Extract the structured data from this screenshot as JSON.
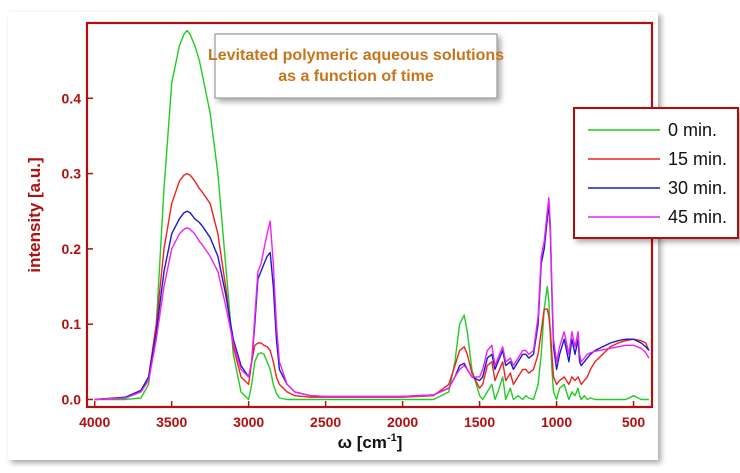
{
  "chart_data": {
    "type": "line",
    "title_lines": [
      "Levitated polymeric aqueous solutions",
      "as a function of time"
    ],
    "xlabel": "ω [cm",
    "xlabel_sup": "-1",
    "xlabel_end": "]",
    "ylabel": "intensity [a.u.]",
    "xlim": [
      4050,
      380
    ],
    "ylim": [
      -0.01,
      0.5
    ],
    "xticks": [
      4000,
      3500,
      3000,
      2500,
      2000,
      1500,
      1000,
      500
    ],
    "xtick_labels": [
      "4000",
      "3500",
      "3000",
      "2500",
      "2000",
      "1500",
      "1000",
      "500"
    ],
    "yticks": [
      0.0,
      0.1,
      0.2,
      0.3,
      0.4
    ],
    "ytick_labels": [
      "0.0",
      "0.1",
      "0.2",
      "0.3",
      "0.4"
    ],
    "legend_position": "top-right",
    "grid": false,
    "axis_color": "#b01010",
    "series": [
      {
        "name": "0 min.",
        "color": "#22cc22",
        "x": [
          4000,
          3800,
          3700,
          3650,
          3600,
          3550,
          3500,
          3450,
          3420,
          3400,
          3380,
          3350,
          3320,
          3300,
          3250,
          3200,
          3150,
          3100,
          3050,
          3000,
          2980,
          2960,
          2940,
          2920,
          2900,
          2880,
          2860,
          2840,
          2820,
          2800,
          2750,
          2700,
          2600,
          2500,
          2400,
          2200,
          2000,
          1800,
          1700,
          1660,
          1630,
          1600,
          1580,
          1550,
          1500,
          1480,
          1450,
          1420,
          1400,
          1380,
          1350,
          1330,
          1300,
          1280,
          1250,
          1220,
          1200,
          1180,
          1150,
          1120,
          1100,
          1080,
          1060,
          1050,
          1040,
          1030,
          1020,
          1000,
          980,
          950,
          920,
          900,
          880,
          860,
          850,
          840,
          820,
          800,
          780,
          750,
          700,
          650,
          600,
          550,
          500,
          450,
          420,
          400
        ],
        "y": [
          0.0,
          0.0,
          0.002,
          0.02,
          0.1,
          0.28,
          0.42,
          0.47,
          0.485,
          0.49,
          0.485,
          0.47,
          0.45,
          0.43,
          0.38,
          0.3,
          0.18,
          0.06,
          0.01,
          0.0,
          0.02,
          0.05,
          0.06,
          0.062,
          0.06,
          0.05,
          0.04,
          0.02,
          0.008,
          0.002,
          0.0,
          0.0,
          0.0,
          0.0,
          0.0,
          0.0,
          0.0,
          0.0,
          0.01,
          0.05,
          0.1,
          0.112,
          0.09,
          0.04,
          0.005,
          0.0,
          0.01,
          0.02,
          0.0,
          0.01,
          0.03,
          0.0,
          0.015,
          0.0,
          0.005,
          0.0,
          0.005,
          0.002,
          0.0,
          0.02,
          0.06,
          0.12,
          0.15,
          0.13,
          0.08,
          0.04,
          0.01,
          0.0,
          0.015,
          0.02,
          0.0,
          0.01,
          0.005,
          0.015,
          0.005,
          0.0,
          0.005,
          0.0,
          0.002,
          0.0,
          0.0,
          0.0,
          0.0,
          0.0,
          0.005,
          0.0,
          0.0,
          0.0
        ]
      },
      {
        "name": "15 min.",
        "color": "#ee2222",
        "x": [
          4000,
          3800,
          3700,
          3650,
          3600,
          3550,
          3500,
          3450,
          3420,
          3400,
          3380,
          3350,
          3320,
          3300,
          3250,
          3200,
          3150,
          3100,
          3050,
          3000,
          2980,
          2960,
          2940,
          2920,
          2900,
          2880,
          2860,
          2840,
          2820,
          2800,
          2750,
          2700,
          2600,
          2500,
          2400,
          2200,
          2000,
          1800,
          1700,
          1660,
          1630,
          1600,
          1580,
          1550,
          1500,
          1480,
          1450,
          1420,
          1400,
          1380,
          1350,
          1330,
          1300,
          1280,
          1250,
          1220,
          1200,
          1180,
          1150,
          1120,
          1100,
          1080,
          1060,
          1050,
          1040,
          1030,
          1020,
          1000,
          980,
          950,
          920,
          900,
          880,
          860,
          850,
          840,
          820,
          800,
          780,
          750,
          700,
          650,
          600,
          550,
          500,
          450,
          420,
          400
        ],
        "y": [
          0.0,
          0.002,
          0.01,
          0.03,
          0.1,
          0.2,
          0.26,
          0.29,
          0.298,
          0.3,
          0.298,
          0.29,
          0.28,
          0.275,
          0.26,
          0.22,
          0.15,
          0.07,
          0.03,
          0.02,
          0.05,
          0.072,
          0.075,
          0.075,
          0.072,
          0.07,
          0.065,
          0.05,
          0.03,
          0.02,
          0.01,
          0.005,
          0.003,
          0.003,
          0.003,
          0.003,
          0.003,
          0.005,
          0.02,
          0.045,
          0.065,
          0.07,
          0.06,
          0.035,
          0.015,
          0.02,
          0.045,
          0.05,
          0.025,
          0.035,
          0.05,
          0.025,
          0.035,
          0.02,
          0.03,
          0.04,
          0.04,
          0.035,
          0.04,
          0.06,
          0.09,
          0.12,
          0.12,
          0.11,
          0.09,
          0.06,
          0.03,
          0.02,
          0.025,
          0.03,
          0.02,
          0.03,
          0.025,
          0.03,
          0.025,
          0.02,
          0.025,
          0.03,
          0.04,
          0.05,
          0.06,
          0.07,
          0.075,
          0.078,
          0.08,
          0.078,
          0.075,
          0.065
        ]
      },
      {
        "name": "30 min.",
        "color": "#1a1acc",
        "x": [
          4000,
          3800,
          3700,
          3650,
          3600,
          3550,
          3500,
          3450,
          3420,
          3400,
          3380,
          3350,
          3320,
          3300,
          3250,
          3200,
          3150,
          3100,
          3050,
          3000,
          2980,
          2960,
          2940,
          2920,
          2900,
          2880,
          2860,
          2840,
          2820,
          2800,
          2750,
          2700,
          2600,
          2500,
          2400,
          2200,
          2000,
          1800,
          1700,
          1660,
          1630,
          1600,
          1580,
          1550,
          1500,
          1480,
          1450,
          1420,
          1400,
          1380,
          1350,
          1330,
          1300,
          1280,
          1250,
          1220,
          1200,
          1180,
          1150,
          1120,
          1100,
          1080,
          1060,
          1050,
          1040,
          1030,
          1020,
          1000,
          980,
          950,
          920,
          900,
          880,
          860,
          850,
          840,
          820,
          800,
          780,
          750,
          700,
          650,
          600,
          550,
          500,
          450,
          420,
          400
        ],
        "y": [
          0.0,
          0.003,
          0.012,
          0.03,
          0.09,
          0.17,
          0.22,
          0.24,
          0.248,
          0.25,
          0.248,
          0.24,
          0.235,
          0.23,
          0.215,
          0.19,
          0.14,
          0.08,
          0.045,
          0.03,
          0.05,
          0.1,
          0.16,
          0.17,
          0.18,
          0.19,
          0.195,
          0.15,
          0.08,
          0.04,
          0.02,
          0.01,
          0.005,
          0.004,
          0.004,
          0.004,
          0.004,
          0.006,
          0.015,
          0.03,
          0.045,
          0.048,
          0.04,
          0.03,
          0.025,
          0.03,
          0.055,
          0.06,
          0.04,
          0.05,
          0.065,
          0.045,
          0.05,
          0.04,
          0.05,
          0.06,
          0.06,
          0.055,
          0.06,
          0.1,
          0.18,
          0.2,
          0.24,
          0.26,
          0.22,
          0.14,
          0.07,
          0.04,
          0.06,
          0.08,
          0.05,
          0.08,
          0.06,
          0.08,
          0.05,
          0.045,
          0.05,
          0.055,
          0.06,
          0.065,
          0.07,
          0.075,
          0.078,
          0.08,
          0.08,
          0.075,
          0.07,
          0.065
        ]
      },
      {
        "name": "45 min.",
        "color": "#ee22ee",
        "x": [
          4000,
          3800,
          3700,
          3650,
          3600,
          3550,
          3500,
          3450,
          3420,
          3400,
          3380,
          3350,
          3320,
          3300,
          3250,
          3200,
          3150,
          3100,
          3050,
          3000,
          2980,
          2960,
          2940,
          2920,
          2900,
          2880,
          2860,
          2840,
          2820,
          2800,
          2750,
          2700,
          2600,
          2500,
          2400,
          2200,
          2000,
          1800,
          1700,
          1660,
          1630,
          1600,
          1580,
          1550,
          1500,
          1480,
          1450,
          1420,
          1400,
          1380,
          1350,
          1330,
          1300,
          1280,
          1250,
          1220,
          1200,
          1180,
          1150,
          1120,
          1100,
          1080,
          1060,
          1050,
          1040,
          1030,
          1020,
          1000,
          980,
          950,
          920,
          900,
          880,
          860,
          850,
          840,
          820,
          800,
          780,
          750,
          700,
          650,
          600,
          550,
          500,
          450,
          420,
          400
        ],
        "y": [
          0.0,
          0.002,
          0.01,
          0.025,
          0.08,
          0.15,
          0.2,
          0.22,
          0.226,
          0.228,
          0.226,
          0.22,
          0.21,
          0.205,
          0.19,
          0.17,
          0.125,
          0.075,
          0.04,
          0.03,
          0.05,
          0.11,
          0.17,
          0.18,
          0.2,
          0.22,
          0.237,
          0.18,
          0.1,
          0.05,
          0.02,
          0.01,
          0.005,
          0.004,
          0.004,
          0.004,
          0.004,
          0.006,
          0.015,
          0.03,
          0.04,
          0.045,
          0.04,
          0.03,
          0.03,
          0.04,
          0.065,
          0.072,
          0.045,
          0.055,
          0.07,
          0.05,
          0.055,
          0.045,
          0.055,
          0.065,
          0.065,
          0.06,
          0.065,
          0.11,
          0.19,
          0.21,
          0.25,
          0.268,
          0.23,
          0.15,
          0.08,
          0.05,
          0.07,
          0.09,
          0.06,
          0.09,
          0.07,
          0.09,
          0.06,
          0.05,
          0.055,
          0.06,
          0.062,
          0.064,
          0.066,
          0.068,
          0.07,
          0.072,
          0.072,
          0.068,
          0.062,
          0.055
        ]
      }
    ]
  }
}
